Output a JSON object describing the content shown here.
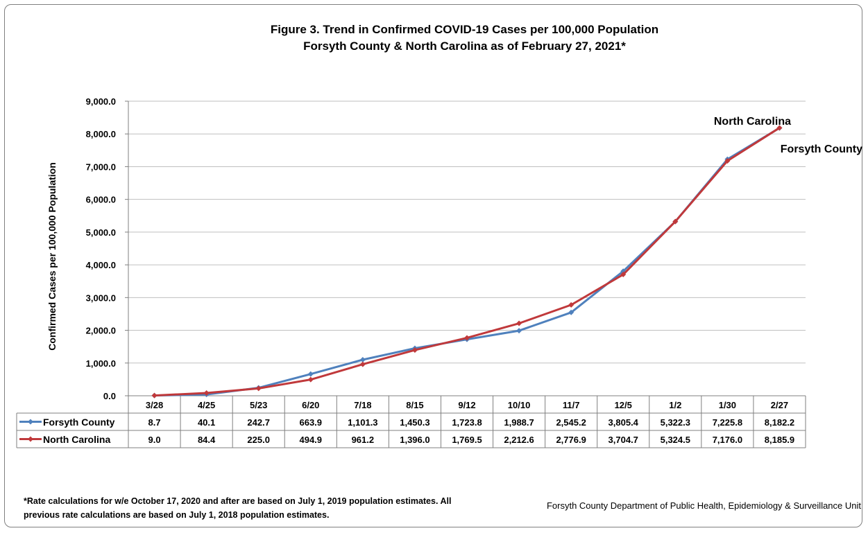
{
  "chart_data": {
    "type": "line",
    "title": "Figure 3. Trend in Confirmed COVID-19 Cases per 100,000 Population",
    "subtitle": "Forsyth County & North Carolina as of February 27, 2021*",
    "xlabel": "",
    "ylabel": "Confirmed Cases per 100,000 Population",
    "ylim": [
      0,
      9000
    ],
    "yticks": [
      "0.0",
      "1,000.0",
      "2,000.0",
      "3,000.0",
      "4,000.0",
      "5,000.0",
      "6,000.0",
      "7,000.0",
      "8,000.0",
      "9,000.0"
    ],
    "grid": true,
    "legend": "data-table",
    "categories": [
      "3/28",
      "4/25",
      "5/23",
      "6/20",
      "7/18",
      "8/15",
      "9/12",
      "10/10",
      "11/7",
      "12/5",
      "1/2",
      "1/30",
      "2/27"
    ],
    "series": [
      {
        "name": "Forsyth County",
        "color": "#4f81bd",
        "values": [
          8.7,
          40.1,
          242.7,
          663.9,
          1101.3,
          1450.3,
          1723.8,
          1988.7,
          2545.2,
          3805.4,
          5322.3,
          7225.8,
          8182.2
        ],
        "labels": [
          "8.7",
          "40.1",
          "242.7",
          "663.9",
          "1,101.3",
          "1,450.3",
          "1,723.8",
          "1,988.7",
          "2,545.2",
          "3,805.4",
          "5,322.3",
          "7,225.8",
          "8,182.2"
        ]
      },
      {
        "name": "North Carolina",
        "color": "#c0393b",
        "values": [
          9.0,
          84.4,
          225.0,
          494.9,
          961.2,
          1396.0,
          1769.5,
          2212.6,
          2776.9,
          3704.7,
          5324.5,
          7176.0,
          8185.9
        ],
        "labels": [
          "9.0",
          "84.4",
          "225.0",
          "494.9",
          "961.2",
          "1,396.0",
          "1,769.5",
          "2,212.6",
          "2,776.9",
          "3,704.7",
          "5,324.5",
          "7,176.0",
          "8,185.9"
        ]
      }
    ],
    "annotations": [
      "North Carolina",
      "Forsyth County"
    ]
  },
  "footnote": "*Rate calculations for w/e October 17, 2020 and after are based on July 1, 2019 population estimates. All previous rate calculations are based on July 1, 2018 population estimates.",
  "source": "Forsyth County Department of Public Health, Epidemiology & Surveillance Unit"
}
